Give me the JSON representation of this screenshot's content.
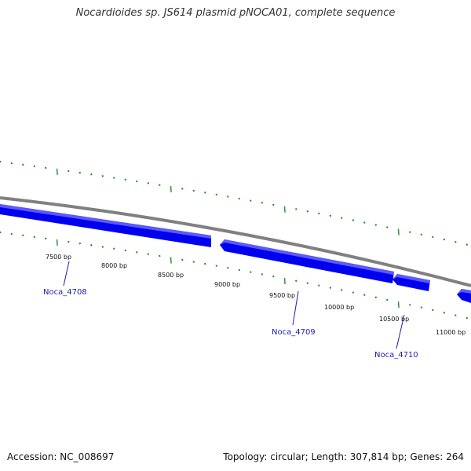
{
  "title": "Nocardioides sp. JS614 plasmid pNOCA01, complete sequence",
  "footer": {
    "accession": "Accession: NC_008697",
    "info": "Topology: circular; Length: 307,814 bp; Genes: 264"
  },
  "colors": {
    "backbone": "#808080",
    "gene_fill": "#0000ee",
    "gene_highlight": "#5a5aff",
    "tick": "#2a8a2a",
    "gene_label": "#1d1daa"
  },
  "scale_labels": [
    "7500 bp",
    "8000 bp",
    "8500 bp",
    "9000 bp",
    "9500 bp",
    "10000 bp",
    "10500 bp",
    "11000 bp"
  ],
  "genes": [
    {
      "name": "Noca_4708",
      "strand": "+"
    },
    {
      "name": "Noca_4709",
      "strand": "-"
    },
    {
      "name": "Noca_4710",
      "strand": "-"
    }
  ]
}
